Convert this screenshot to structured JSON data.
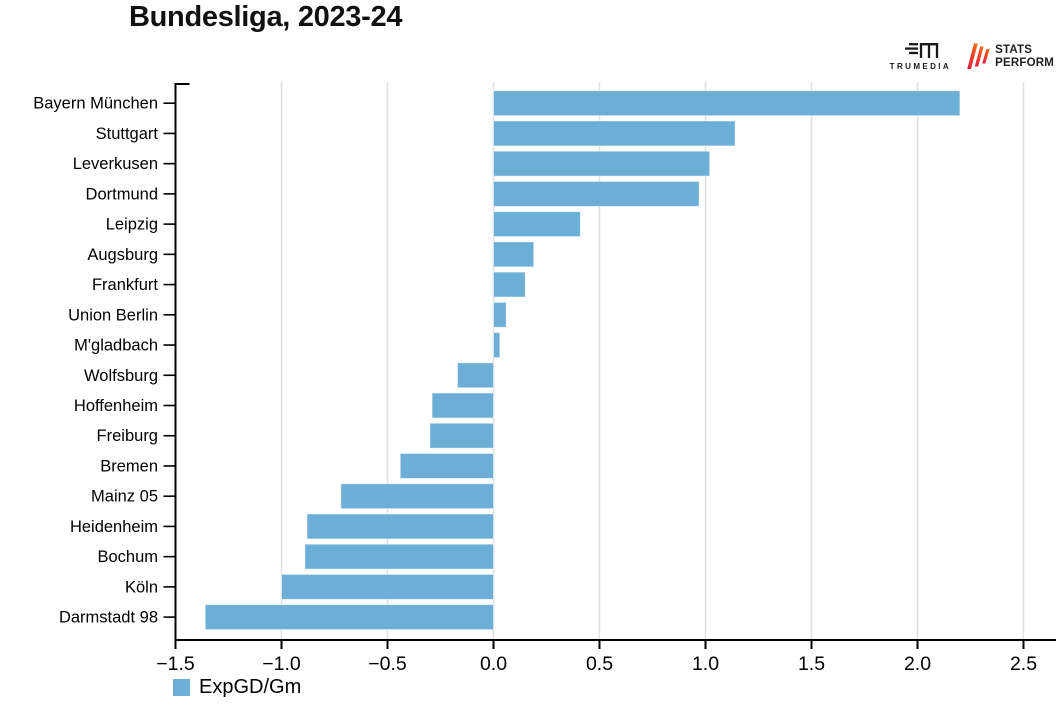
{
  "header": {
    "title": "Bundesliga, 2023-24"
  },
  "branding": {
    "trumedia_label": "TRUMEDIA",
    "statsperform_line1": "STATS",
    "statsperform_line2": "PERFORM"
  },
  "chart_data": {
    "type": "bar",
    "orientation": "horizontal",
    "title": "Bundesliga, 2023-24",
    "legend_label": "ExpGD/Gm",
    "legend_position": "bottom-left",
    "grid": true,
    "bar_color": "#6caed6",
    "gridline_color": "#e0e0e0",
    "axis_color": "#000000",
    "xlim": [
      -1.5,
      2.5
    ],
    "xticks": [
      -1.5,
      -1.0,
      -0.5,
      0.0,
      0.5,
      1.0,
      1.5,
      2.0,
      2.5
    ],
    "xtick_labels": [
      "−1.5",
      "−1.0",
      "−0.5",
      "0.0",
      "0.5",
      "1.0",
      "1.5",
      "2.0",
      "2.5"
    ],
    "categories": [
      "Bayern München",
      "Stuttgart",
      "Leverkusen",
      "Dortmund",
      "Leipzig",
      "Augsburg",
      "Frankfurt",
      "Union Berlin",
      "M'gladbach",
      "Wolfsburg",
      "Hoffenheim",
      "Freiburg",
      "Bremen",
      "Mainz 05",
      "Heidenheim",
      "Bochum",
      "Köln",
      "Darmstadt 98"
    ],
    "values": [
      2.2,
      1.14,
      1.02,
      0.97,
      0.41,
      0.19,
      0.15,
      0.06,
      0.03,
      -0.17,
      -0.29,
      -0.3,
      -0.44,
      -0.72,
      -0.88,
      -0.89,
      -1.0,
      -1.36
    ]
  }
}
